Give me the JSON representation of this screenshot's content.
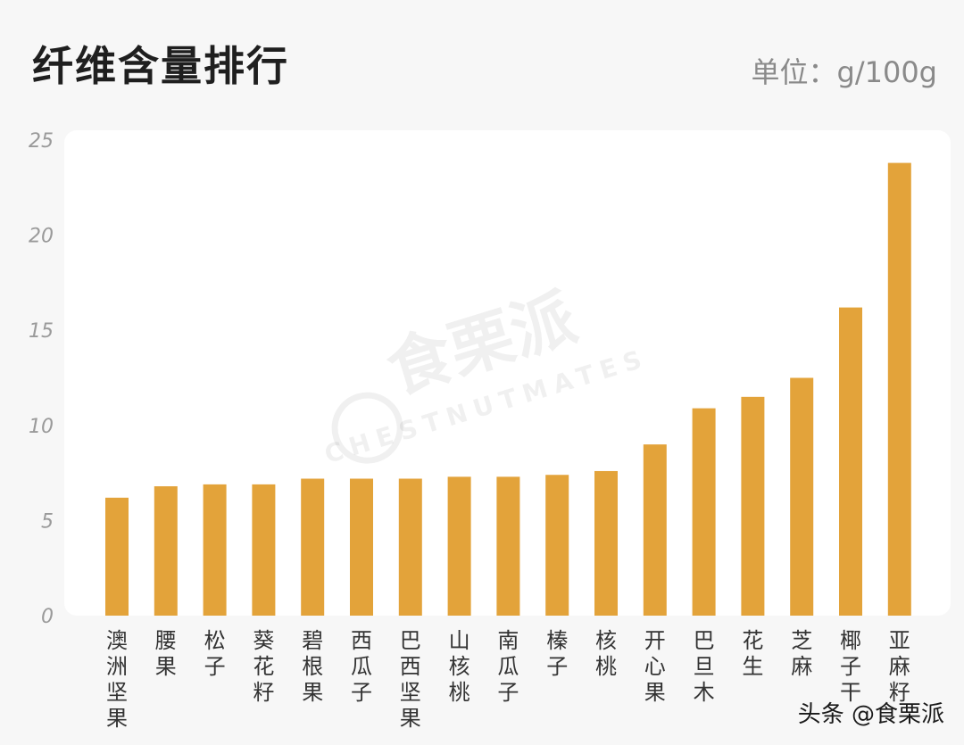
{
  "header": {
    "title": "纤维含量排行",
    "unit": "单位：g/100g"
  },
  "watermark": {
    "name": "食栗派",
    "english": "CHESTNUTMATES"
  },
  "credit": "头条 @食栗派",
  "colors": {
    "bar": "#e3a33a",
    "background": "#f7f7f7",
    "plot_background": "#ffffff"
  },
  "chart_data": {
    "type": "bar",
    "title": "纤维含量排行",
    "ylim": [
      0,
      25
    ],
    "yticks": [
      0,
      5,
      10,
      15,
      20,
      25
    ],
    "grid": false,
    "categories": [
      "澳洲坚果",
      "腰果",
      "松子",
      "葵花籽",
      "碧根果",
      "西瓜子",
      "巴西坚果",
      "山核桃",
      "南瓜子",
      "榛子",
      "核桃",
      "开心果",
      "巴旦木",
      "花生",
      "芝麻",
      "椰子干",
      "亚麻籽"
    ],
    "values": [
      6.2,
      6.8,
      6.9,
      6.9,
      7.2,
      7.2,
      7.2,
      7.3,
      7.3,
      7.4,
      7.6,
      9.0,
      10.9,
      11.5,
      12.5,
      16.2,
      23.8
    ]
  }
}
